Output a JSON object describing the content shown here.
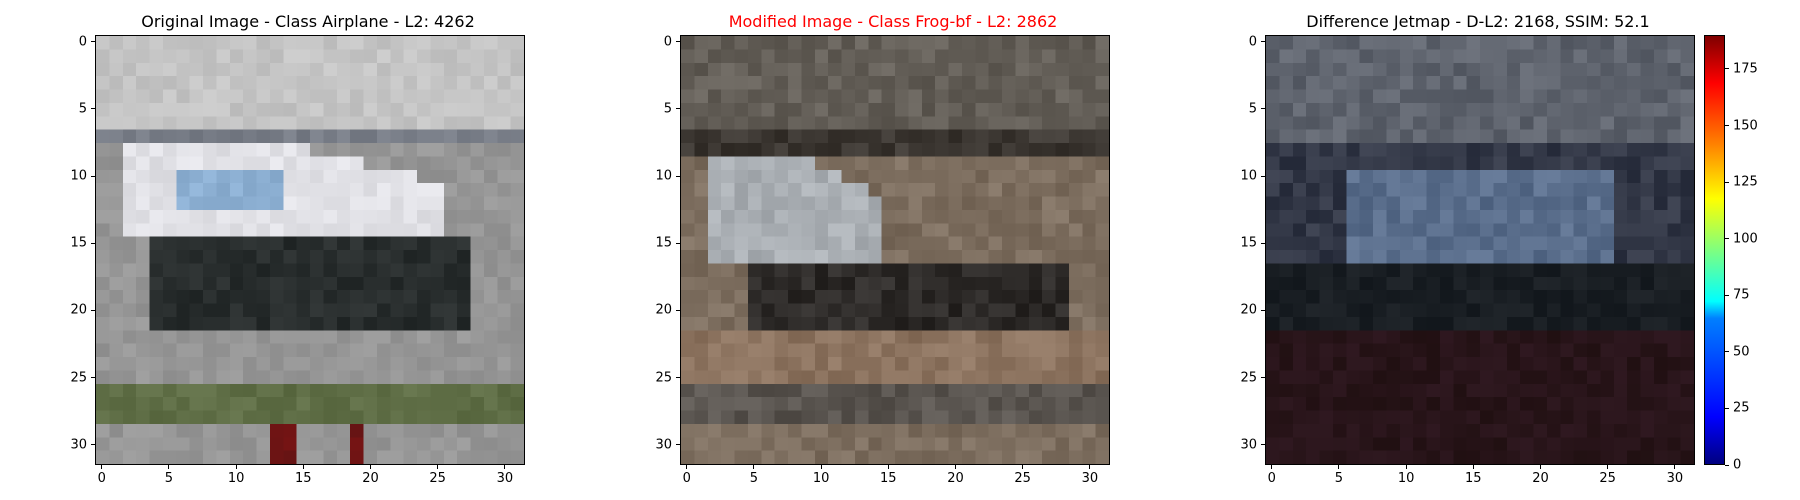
{
  "panels": [
    {
      "title": "Original Image - Class Airplane - L2: 4262",
      "title_color": "#000000"
    },
    {
      "title": "Modified Image - Class Frog-bf - L2: 2862",
      "title_color": "#ff0000"
    },
    {
      "title": "Difference Jetmap - D-L2: 2168, SSIM: 52.1",
      "title_color": "#000000"
    }
  ],
  "chart_data": [
    {
      "type": "heatmap",
      "title": "Original Image - Class Airplane - L2: 4262",
      "grid": false,
      "xlim": [
        -0.5,
        31.5
      ],
      "ylim": [
        31.5,
        -0.5
      ],
      "xticks": [
        0,
        5,
        10,
        15,
        20,
        25,
        30
      ],
      "yticks": [
        0,
        5,
        10,
        15,
        20,
        25,
        30
      ]
    },
    {
      "type": "heatmap",
      "title": "Modified Image - Class Frog-bf - L2: 2862",
      "grid": false,
      "xlim": [
        -0.5,
        31.5
      ],
      "ylim": [
        31.5,
        -0.5
      ],
      "xticks": [
        0,
        5,
        10,
        15,
        20,
        25,
        30
      ],
      "yticks": [
        0,
        5,
        10,
        15,
        20,
        25,
        30
      ]
    },
    {
      "type": "heatmap",
      "title": "Difference Jetmap - D-L2: 2168, SSIM: 52.1",
      "grid": false,
      "xlim": [
        -0.5,
        31.5
      ],
      "ylim": [
        31.5,
        -0.5
      ],
      "xticks": [
        0,
        5,
        10,
        15,
        20,
        25,
        30
      ],
      "yticks": [
        0,
        5,
        10,
        15,
        20,
        25,
        30
      ],
      "colorbar": {
        "colormap": "jet",
        "range": [
          0,
          190
        ],
        "ticks": [
          0,
          25,
          50,
          75,
          100,
          125,
          150,
          175
        ]
      }
    }
  ]
}
